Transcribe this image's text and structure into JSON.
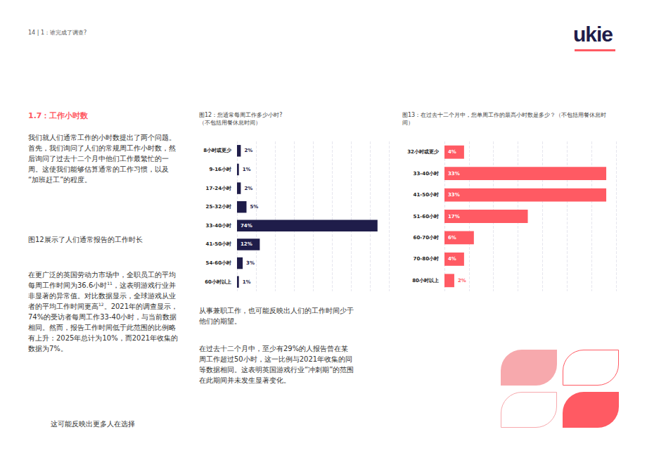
{
  "header": {
    "page": "14 | 1：谁完成了调查?",
    "logo": "ukie"
  },
  "left": {
    "heading": "1.7：工作小时数",
    "paragraph1": "我们就人们通常工作的小时数提出了两个问题。首先，我们询问了人们的常规周工作小时数，然后询问了过去十二个月中他们工作最繁忙的一周。这使我们能够估算通常的工作习惯，以及“加班赶工”的程度。",
    "paragraph2": "图12展示了人们通常报告的工作时长",
    "paragraph3": [
      {
        "text": "在更广泛的英国劳动力市场中，全职员工的平均每周工作时间为36.6小时"
      },
      {
        "sup": "11"
      },
      {
        "text": "，这表明游戏行业并非显著的异常值。对比数据显示，全球游戏从业者的平均工作时间更高"
      },
      {
        "sup": "12"
      },
      {
        "text": "。2021年的调查显示，74%的受访者每周工作33-40小时，与当前数据相同。然而，报告工作时间低于此范围的比例略有上升：2025年总计为10%，而2021年收集的数据为7%。"
      }
    ],
    "paragraph4": "这可能反映出更多人在选择"
  },
  "middle": {
    "paragraph1": "从事兼职工作，也可能反映出人们的工作时间少于他们的期望。",
    "paragraph2": "在过去十二个月中，至少有29%的人报告曾在某周工作超过50小时，这一比例与2021年收集的同等数据相同。这表明英国游戏行业“冲刺期”的范围在此期间并未发生显著变化。"
  },
  "chart_data": [
    {
      "type": "bar",
      "title": "图12：您通常每周工作多少小时?",
      "subtitle": "（不包括用餐休息时间）",
      "orientation": "horizontal",
      "categories": [
        "8小时或更少",
        "9-16小时",
        "17-24小时",
        "25-32小时",
        "33-40小时",
        "41-50小时",
        "54-60小时",
        "60小时以上"
      ],
      "values": [
        2,
        1,
        2,
        5,
        74,
        12,
        3,
        1
      ],
      "value_labels": [
        "2%",
        "1%",
        "2%",
        "5%",
        "74%",
        "12%",
        "3%",
        "1%"
      ],
      "color": "#1f1d4a",
      "xlim": [
        0,
        80
      ],
      "xticks": [
        0,
        10,
        20,
        30,
        40,
        50,
        60,
        70,
        80
      ],
      "grid": true,
      "data_labels": true,
      "tick_labels": "y"
    },
    {
      "type": "bar",
      "title": "图13：在过去十二个月中，您单周工作的最高小时数是多少？（不包括用餐休息时间）",
      "orientation": "horizontal",
      "categories": [
        "32小时或更少",
        "33-40小时",
        "41-50小时",
        "51-60小时",
        "60-70小时",
        "70-80小时",
        "80小时以上"
      ],
      "values": [
        4,
        33,
        33,
        17,
        6,
        4,
        2
      ],
      "value_labels": [
        "4%",
        "33%",
        "33%",
        "17%",
        "6%",
        "4%",
        "2%"
      ],
      "color": "#ff5a63",
      "xlim": [
        0,
        35
      ],
      "xticks": [
        0,
        5,
        10,
        15,
        20,
        25,
        30,
        35
      ],
      "grid": true,
      "data_labels": true,
      "tick_labels": "y"
    }
  ]
}
